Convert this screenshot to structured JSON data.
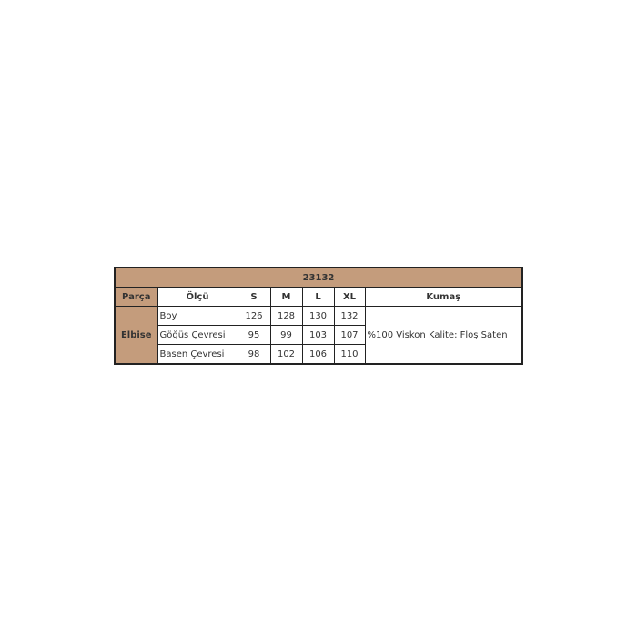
{
  "title": "23132",
  "headers": {
    "part": "Parça",
    "measure": "Ölçü",
    "sizes": [
      "S",
      "M",
      "L",
      "XL"
    ],
    "fabric": "Kumaş"
  },
  "part": "Elbise",
  "rows": [
    {
      "label": "Boy",
      "values": [
        "126",
        "128",
        "130",
        "132"
      ]
    },
    {
      "label": "Göğüs Çevresi",
      "values": [
        "95",
        "99",
        "103",
        "107"
      ]
    },
    {
      "label": "Basen Çevresi",
      "values": [
        "98",
        "102",
        "106",
        "110"
      ]
    }
  ],
  "fabric": "%100 Viskon  Kalite: Floş Saten",
  "colors": {
    "header_bg": "#c49c7c",
    "border": "#222222"
  }
}
